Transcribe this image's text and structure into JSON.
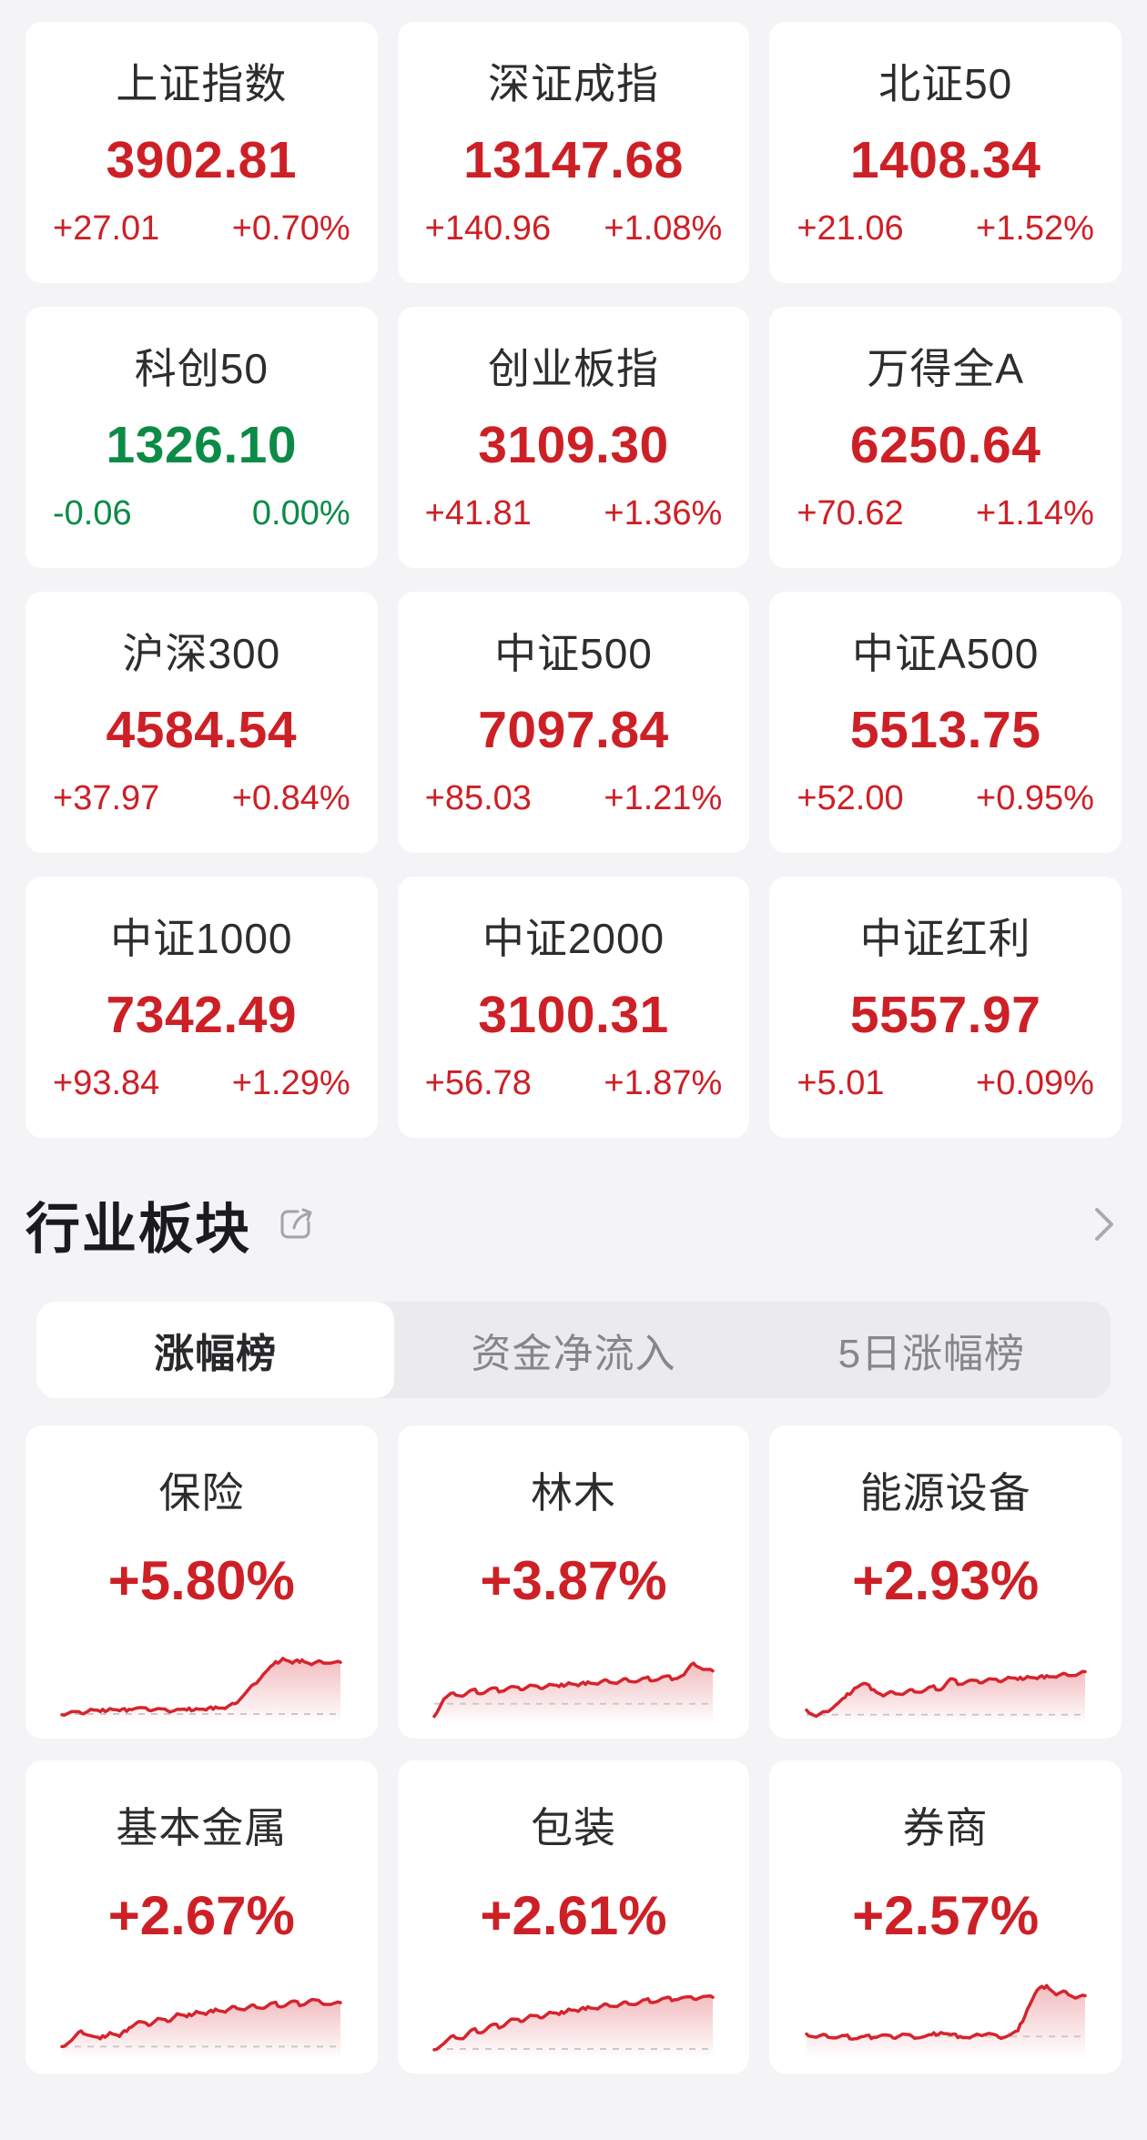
{
  "colors": {
    "up": "#cd2026",
    "down": "#0c8b47",
    "spark": "#d5242e",
    "spark_baseline": "#c9c9cb"
  },
  "indices": [
    {
      "name": "上证指数",
      "value": "3902.81",
      "change": "+27.01",
      "pct": "+0.70%",
      "dir": "up"
    },
    {
      "name": "深证成指",
      "value": "13147.68",
      "change": "+140.96",
      "pct": "+1.08%",
      "dir": "up"
    },
    {
      "name": "北证50",
      "value": "1408.34",
      "change": "+21.06",
      "pct": "+1.52%",
      "dir": "up"
    },
    {
      "name": "科创50",
      "value": "1326.10",
      "change": "-0.06",
      "pct": "0.00%",
      "dir": "down"
    },
    {
      "name": "创业板指",
      "value": "3109.30",
      "change": "+41.81",
      "pct": "+1.36%",
      "dir": "up"
    },
    {
      "name": "万得全A",
      "value": "6250.64",
      "change": "+70.62",
      "pct": "+1.14%",
      "dir": "up"
    },
    {
      "name": "沪深300",
      "value": "4584.54",
      "change": "+37.97",
      "pct": "+0.84%",
      "dir": "up"
    },
    {
      "name": "中证500",
      "value": "7097.84",
      "change": "+85.03",
      "pct": "+1.21%",
      "dir": "up"
    },
    {
      "name": "中证A500",
      "value": "5513.75",
      "change": "+52.00",
      "pct": "+0.95%",
      "dir": "up"
    },
    {
      "name": "中证1000",
      "value": "7342.49",
      "change": "+93.84",
      "pct": "+1.29%",
      "dir": "up"
    },
    {
      "name": "中证2000",
      "value": "3100.31",
      "change": "+56.78",
      "pct": "+1.87%",
      "dir": "up"
    },
    {
      "name": "中证红利",
      "value": "5557.97",
      "change": "+5.01",
      "pct": "+0.09%",
      "dir": "up"
    }
  ],
  "section": {
    "title": "行业板块"
  },
  "tabs": [
    {
      "label": "涨幅榜",
      "active": true
    },
    {
      "label": "资金净流入",
      "active": false
    },
    {
      "label": "5日涨幅榜",
      "active": false
    }
  ],
  "sectors": [
    {
      "name": "保险",
      "pct": "+5.80%",
      "baseline": 7,
      "spark": [
        6,
        10,
        8,
        13,
        10,
        14,
        11,
        13,
        15,
        12,
        14,
        11,
        13,
        12,
        14,
        12,
        16,
        14,
        20,
        32,
        45,
        58,
        70,
        78,
        72,
        76,
        70,
        74,
        72,
        73
      ]
    },
    {
      "name": "林木",
      "pct": "+3.87%",
      "baseline": 20,
      "spark": [
        4,
        26,
        34,
        30,
        38,
        33,
        40,
        36,
        42,
        38,
        44,
        40,
        45,
        42,
        47,
        43,
        48,
        45,
        50,
        46,
        52,
        48,
        53,
        50,
        55,
        52,
        57,
        72,
        64,
        62
      ]
    },
    {
      "name": "能源设备",
      "pct": "+2.93%",
      "baseline": 6,
      "spark": [
        12,
        4,
        10,
        18,
        28,
        40,
        46,
        38,
        30,
        35,
        32,
        38,
        35,
        42,
        38,
        52,
        45,
        50,
        47,
        52,
        49,
        54,
        51,
        55,
        52,
        56,
        54,
        58,
        56,
        61
      ]
    },
    {
      "name": "基本金属",
      "pct": "+2.67%",
      "baseline": 10,
      "spark": [
        10,
        18,
        30,
        24,
        20,
        28,
        23,
        34,
        42,
        37,
        46,
        42,
        52,
        48,
        55,
        51,
        58,
        54,
        61,
        57,
        63,
        59,
        66,
        61,
        68,
        63,
        70,
        66,
        64,
        66
      ]
    },
    {
      "name": "包装",
      "pct": "+2.61%",
      "baseline": 7,
      "spark": [
        6,
        14,
        24,
        20,
        32,
        28,
        38,
        35,
        45,
        42,
        50,
        47,
        54,
        51,
        58,
        55,
        61,
        58,
        64,
        61,
        67,
        64,
        70,
        67,
        72,
        70,
        73,
        71,
        74,
        73
      ]
    },
    {
      "name": "券商",
      "pct": "+2.57%",
      "baseline": 23,
      "spark": [
        26,
        22,
        25,
        21,
        24,
        20,
        23,
        22,
        25,
        21,
        26,
        23,
        22,
        25,
        28,
        25,
        23,
        21,
        25,
        27,
        22,
        24,
        30,
        58,
        82,
        88,
        76,
        80,
        72,
        75
      ]
    }
  ]
}
